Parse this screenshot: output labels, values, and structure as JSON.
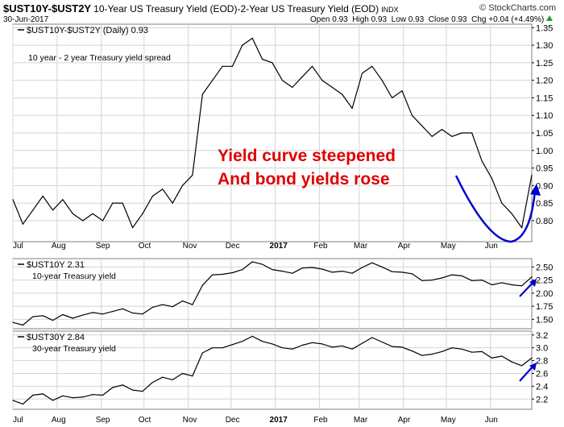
{
  "header": {
    "symbol": "$UST10Y-$UST2Y",
    "description": "10-Year US Treasury Yield (EOD)-2-Year US Treasury Yield (EOD)",
    "exchange": "INDX",
    "date": "30-Jun-2017",
    "ohlc": "Open 0.93  High 0.93  Low 0.93  Close 0.93  Chg +0.04 (+4.49%)",
    "ohlc_arrow_color": "#2a9d2a",
    "watermark": "© StockCharts.com"
  },
  "colors": {
    "price_line": "#000000",
    "annotation_text": "#e00000",
    "annotation_curve": "#0000cc",
    "grid": "#d4d4d4",
    "panel_border": "#7f7f7f"
  },
  "x_axis_labels": [
    "Jul",
    "Aug",
    "Sep",
    "Oct",
    "Nov",
    "Dec",
    "2017",
    "Feb",
    "Mar",
    "Apr",
    "May",
    "Jun"
  ],
  "chart_data": [
    {
      "type": "line",
      "legend": "$UST10Y-$UST2Y (Daily) 0.93",
      "annotation": "10 year - 2 year Treasury yield spread",
      "callout": [
        "Yield curve steepened",
        "And bond yields rose"
      ],
      "ylim": [
        0.74,
        1.36
      ],
      "yticks": [
        0.8,
        0.85,
        0.9,
        0.95,
        1.0,
        1.05,
        1.1,
        1.15,
        1.2,
        1.25,
        1.3,
        1.35
      ],
      "ytick_labels": [
        "0.80",
        "0.85",
        "0.90",
        "0.95",
        "1.00",
        "1.05",
        "1.10",
        "1.15",
        "1.20",
        "1.25",
        "1.30",
        "1.35"
      ],
      "x": [
        "2016-07-01",
        "2016-07-08",
        "2016-07-15",
        "2016-07-22",
        "2016-07-29",
        "2016-08-05",
        "2016-08-12",
        "2016-08-19",
        "2016-08-26",
        "2016-09-02",
        "2016-09-09",
        "2016-09-16",
        "2016-09-23",
        "2016-09-30",
        "2016-10-07",
        "2016-10-14",
        "2016-10-21",
        "2016-10-28",
        "2016-11-04",
        "2016-11-11",
        "2016-11-18",
        "2016-11-25",
        "2016-12-02",
        "2016-12-09",
        "2016-12-16",
        "2016-12-23",
        "2016-12-30",
        "2017-01-06",
        "2017-01-13",
        "2017-01-20",
        "2017-01-27",
        "2017-02-03",
        "2017-02-10",
        "2017-02-17",
        "2017-02-24",
        "2017-03-03",
        "2017-03-10",
        "2017-03-17",
        "2017-03-24",
        "2017-03-31",
        "2017-04-07",
        "2017-04-14",
        "2017-04-21",
        "2017-04-28",
        "2017-05-05",
        "2017-05-12",
        "2017-05-19",
        "2017-05-26",
        "2017-06-02",
        "2017-06-09",
        "2017-06-16",
        "2017-06-23",
        "2017-06-30"
      ],
      "values": [
        0.86,
        0.79,
        0.83,
        0.87,
        0.83,
        0.86,
        0.82,
        0.8,
        0.82,
        0.8,
        0.85,
        0.85,
        0.78,
        0.82,
        0.87,
        0.89,
        0.85,
        0.9,
        0.93,
        1.16,
        1.2,
        1.24,
        1.24,
        1.3,
        1.32,
        1.26,
        1.25,
        1.2,
        1.18,
        1.21,
        1.24,
        1.2,
        1.18,
        1.16,
        1.12,
        1.22,
        1.24,
        1.2,
        1.15,
        1.17,
        1.1,
        1.07,
        1.04,
        1.06,
        1.04,
        1.05,
        1.05,
        0.97,
        0.92,
        0.85,
        0.82,
        0.78,
        0.93
      ]
    },
    {
      "type": "line",
      "legend": "$UST10Y 2.31",
      "annotation": "10-year Treasury yield",
      "ylim": [
        1.32,
        2.66
      ],
      "yticks": [
        1.5,
        1.75,
        2.0,
        2.25,
        2.5
      ],
      "ytick_labels": [
        "1.50",
        "1.75",
        "2.00",
        "2.25",
        "2.50"
      ],
      "x": [
        "2016-07-01",
        "2016-07-08",
        "2016-07-15",
        "2016-07-22",
        "2016-07-29",
        "2016-08-05",
        "2016-08-12",
        "2016-08-19",
        "2016-08-26",
        "2016-09-02",
        "2016-09-09",
        "2016-09-16",
        "2016-09-23",
        "2016-09-30",
        "2016-10-07",
        "2016-10-14",
        "2016-10-21",
        "2016-10-28",
        "2016-11-04",
        "2016-11-11",
        "2016-11-18",
        "2016-11-25",
        "2016-12-02",
        "2016-12-09",
        "2016-12-16",
        "2016-12-23",
        "2016-12-30",
        "2017-01-06",
        "2017-01-13",
        "2017-01-20",
        "2017-01-27",
        "2017-02-03",
        "2017-02-10",
        "2017-02-17",
        "2017-02-24",
        "2017-03-03",
        "2017-03-10",
        "2017-03-17",
        "2017-03-24",
        "2017-03-31",
        "2017-04-07",
        "2017-04-14",
        "2017-04-21",
        "2017-04-28",
        "2017-05-05",
        "2017-05-12",
        "2017-05-19",
        "2017-05-26",
        "2017-06-02",
        "2017-06-09",
        "2017-06-16",
        "2017-06-23",
        "2017-06-30"
      ],
      "values": [
        1.44,
        1.39,
        1.55,
        1.57,
        1.48,
        1.59,
        1.52,
        1.58,
        1.63,
        1.6,
        1.65,
        1.7,
        1.62,
        1.6,
        1.73,
        1.78,
        1.74,
        1.85,
        1.78,
        2.15,
        2.35,
        2.36,
        2.39,
        2.45,
        2.6,
        2.55,
        2.45,
        2.42,
        2.38,
        2.48,
        2.49,
        2.46,
        2.4,
        2.42,
        2.38,
        2.49,
        2.58,
        2.5,
        2.41,
        2.4,
        2.37,
        2.24,
        2.25,
        2.29,
        2.35,
        2.33,
        2.24,
        2.25,
        2.16,
        2.2,
        2.16,
        2.14,
        2.31
      ]
    },
    {
      "type": "line",
      "legend": "$UST30Y 2.84",
      "annotation": "30-year Treasury yield",
      "ylim": [
        2.04,
        3.26
      ],
      "yticks": [
        2.2,
        2.4,
        2.6,
        2.8,
        3.0,
        3.2
      ],
      "ytick_labels": [
        "2.2",
        "2.4",
        "2.6",
        "2.8",
        "3.0",
        "3.2"
      ],
      "x": [
        "2016-07-01",
        "2016-07-08",
        "2016-07-15",
        "2016-07-22",
        "2016-07-29",
        "2016-08-05",
        "2016-08-12",
        "2016-08-19",
        "2016-08-26",
        "2016-09-02",
        "2016-09-09",
        "2016-09-16",
        "2016-09-23",
        "2016-09-30",
        "2016-10-07",
        "2016-10-14",
        "2016-10-21",
        "2016-10-28",
        "2016-11-04",
        "2016-11-11",
        "2016-11-18",
        "2016-11-25",
        "2016-12-02",
        "2016-12-09",
        "2016-12-16",
        "2016-12-23",
        "2016-12-30",
        "2017-01-06",
        "2017-01-13",
        "2017-01-20",
        "2017-01-27",
        "2017-02-03",
        "2017-02-10",
        "2017-02-17",
        "2017-02-24",
        "2017-03-03",
        "2017-03-10",
        "2017-03-17",
        "2017-03-24",
        "2017-03-31",
        "2017-04-07",
        "2017-04-14",
        "2017-04-21",
        "2017-04-28",
        "2017-05-05",
        "2017-05-12",
        "2017-05-19",
        "2017-05-26",
        "2017-06-02",
        "2017-06-09",
        "2017-06-16",
        "2017-06-23",
        "2017-06-30"
      ],
      "values": [
        2.18,
        2.12,
        2.26,
        2.28,
        2.18,
        2.25,
        2.22,
        2.23,
        2.27,
        2.26,
        2.38,
        2.42,
        2.34,
        2.32,
        2.46,
        2.54,
        2.5,
        2.6,
        2.56,
        2.92,
        3.0,
        3.0,
        3.05,
        3.1,
        3.18,
        3.1,
        3.06,
        3.0,
        2.98,
        3.04,
        3.08,
        3.06,
        3.01,
        3.03,
        2.98,
        3.07,
        3.16,
        3.09,
        3.02,
        3.01,
        2.95,
        2.88,
        2.9,
        2.94,
        3.0,
        2.98,
        2.93,
        2.94,
        2.84,
        2.87,
        2.78,
        2.72,
        2.84
      ]
    }
  ]
}
